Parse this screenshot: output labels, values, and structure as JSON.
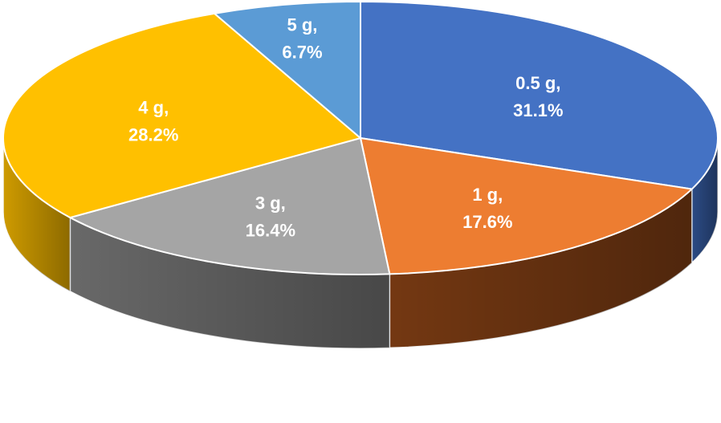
{
  "chart_data": {
    "type": "pie",
    "title": "",
    "style": "3d",
    "slices": [
      {
        "label": "0.5 g",
        "value": 31.1,
        "value_label": "31.1%",
        "color": "#4472C4",
        "side_color": "#2E4F8C"
      },
      {
        "label": "1 g",
        "value": 17.6,
        "value_label": "17.6%",
        "color": "#ED7D31",
        "side_color": "#7A3B13"
      },
      {
        "label": "3 g",
        "value": 16.4,
        "value_label": "16.4%",
        "color": "#A5A5A5",
        "side_color": "#6E6E6E"
      },
      {
        "label": "4 g",
        "value": 28.2,
        "value_label": "28.2%",
        "color": "#FFC000",
        "side_color": "#D9A300"
      },
      {
        "label": "5 g",
        "value": 6.7,
        "value_label": "6.7%",
        "color": "#5B9BD5",
        "side_color": "#3E74A8"
      }
    ],
    "legend": "none",
    "data_labels": "inside"
  }
}
